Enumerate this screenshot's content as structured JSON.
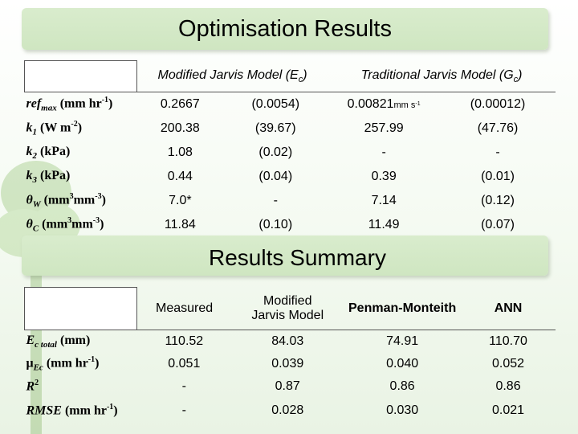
{
  "title": "Optimisation Results",
  "summary_title": "Results Summary",
  "table1": {
    "headers": [
      "Modified Jarvis Model (Ec)",
      "Traditional Jarvis Model (Gc)"
    ],
    "header_parts": {
      "h1_main": "Modified Jarvis Model (E",
      "h1_sub": "c",
      "h1_end": ")",
      "h2_main": "Traditional Jarvis Model (G",
      "h2_sub": "c",
      "h2_end": ")"
    },
    "rows": [
      {
        "label": {
          "sym": "ref",
          "sub": "max",
          "unit_a": " (mm hr",
          "sup": "-1",
          "unit_b": ")"
        },
        "v1": "0.2667",
        "s1": "(0.0054)",
        "v2": "0.00821",
        "v2_unit": "mm s",
        "v2_sup": "-1",
        "s2": "(0.00012)"
      },
      {
        "label": {
          "sym": "k",
          "sub": "1",
          "unit_a": " (W m",
          "sup": "-2",
          "unit_b": ")"
        },
        "v1": "200.38",
        "s1": "(39.67)",
        "v2": "257.99",
        "s2": "(47.76)"
      },
      {
        "label": {
          "sym": "k",
          "sub": "2",
          "unit_a": " (kPa)"
        },
        "v1": "1.08",
        "s1": "(0.02)",
        "v2": "-",
        "s2": "-"
      },
      {
        "label": {
          "sym": "k",
          "sub": "3",
          "unit_a": " (kPa)"
        },
        "v1": "0.44",
        "s1": "(0.04)",
        "v2": "0.39",
        "s2": "(0.01)"
      },
      {
        "label": {
          "sym": "θ",
          "sub": "W",
          "unit_a": " (mm",
          "sup": "3",
          "unit_b": "mm",
          "sup2": "-3",
          "unit_c": ")"
        },
        "v1": "7.0*",
        "s1": "-",
        "v2": "7.14",
        "s2": "(0.12)"
      },
      {
        "label": {
          "sym": "θ",
          "sub": "C",
          "unit_a": " (mm",
          "sup": "3",
          "unit_b": "mm",
          "sup2": "-3",
          "unit_c": ")"
        },
        "v1": "11.84",
        "s1": "(0.10)",
        "v2": "11.49",
        "s2": "(0.07)"
      }
    ]
  },
  "table2": {
    "headers": [
      "Measured",
      "Modified Jarvis Model",
      "Penman-Monteith",
      "ANN"
    ],
    "header_parts": {
      "h2_line1": "Modified",
      "h2_line2": "Jarvis Model"
    },
    "rows": [
      {
        "label": {
          "sym": "E",
          "sub": "c total",
          "unit_a": " (mm)"
        },
        "values": [
          "110.52",
          "84.03",
          "74.91",
          "110.70"
        ]
      },
      {
        "label": {
          "sym": "μ",
          "sub": "Ec",
          "unit_a": " (mm hr",
          "sup": "-1",
          "unit_b": ")"
        },
        "values": [
          "0.051",
          "0.039",
          "0.040",
          "0.052"
        ]
      },
      {
        "label": {
          "sym": "R",
          "sup": "2"
        },
        "values": [
          "-",
          "0.87",
          "0.86",
          "0.86"
        ]
      },
      {
        "label": {
          "sym": "RMSE",
          "unit_a": " (mm hr",
          "sup": "-1",
          "unit_b": ")"
        },
        "values": [
          "-",
          "0.028",
          "0.030",
          "0.021"
        ]
      }
    ]
  }
}
